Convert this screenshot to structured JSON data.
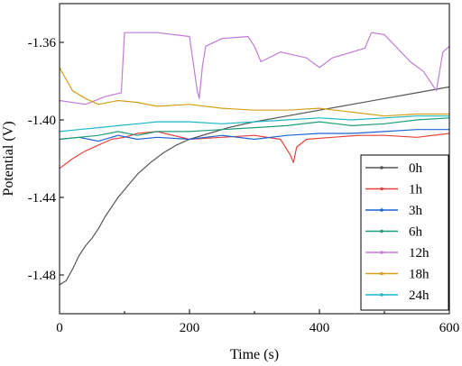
{
  "chart_data": {
    "type": "line",
    "xlabel": "Time (s)",
    "ylabel": "Potential (V)",
    "xlim": [
      0,
      600
    ],
    "ylim": [
      -1.5,
      -1.34
    ],
    "xticks": [
      0,
      200,
      400,
      600
    ],
    "xtick_labels": [
      "0",
      "200",
      "400",
      "600"
    ],
    "yticks": [
      -1.48,
      -1.44,
      -1.4,
      -1.36
    ],
    "ytick_labels": [
      "-1.48",
      "-1.44",
      "-1.40",
      "-1.36"
    ],
    "grid": false,
    "legend_position": "bottom-right",
    "series": [
      {
        "name": "0h",
        "color": "#555555",
        "x": [
          0,
          10,
          20,
          30,
          40,
          50,
          60,
          70,
          80,
          90,
          100,
          120,
          140,
          160,
          180,
          200,
          230,
          260,
          300,
          350,
          400,
          450,
          500,
          550,
          600
        ],
        "y": [
          -1.485,
          -1.483,
          -1.477,
          -1.47,
          -1.465,
          -1.461,
          -1.456,
          -1.45,
          -1.445,
          -1.44,
          -1.436,
          -1.428,
          -1.422,
          -1.417,
          -1.413,
          -1.41,
          -1.407,
          -1.404,
          -1.401,
          -1.398,
          -1.395,
          -1.392,
          -1.389,
          -1.386,
          -1.383
        ]
      },
      {
        "name": "1h",
        "color": "#e8413a",
        "x": [
          0,
          20,
          40,
          60,
          80,
          100,
          120,
          150,
          200,
          250,
          300,
          340,
          355,
          360,
          365,
          380,
          420,
          460,
          500,
          550,
          600
        ],
        "y": [
          -1.425,
          -1.42,
          -1.416,
          -1.413,
          -1.41,
          -1.409,
          -1.407,
          -1.406,
          -1.41,
          -1.409,
          -1.408,
          -1.41,
          -1.418,
          -1.422,
          -1.414,
          -1.41,
          -1.409,
          -1.408,
          -1.408,
          -1.409,
          -1.407
        ]
      },
      {
        "name": "3h",
        "color": "#1f64d6",
        "x": [
          0,
          30,
          60,
          90,
          120,
          150,
          200,
          250,
          300,
          350,
          400,
          450,
          500,
          550,
          600
        ],
        "y": [
          -1.41,
          -1.409,
          -1.411,
          -1.408,
          -1.41,
          -1.409,
          -1.41,
          -1.408,
          -1.41,
          -1.408,
          -1.407,
          -1.407,
          -1.406,
          -1.405,
          -1.405
        ]
      },
      {
        "name": "6h",
        "color": "#1c9e7a",
        "x": [
          0,
          30,
          60,
          90,
          120,
          150,
          200,
          250,
          300,
          350,
          400,
          450,
          500,
          550,
          600
        ],
        "y": [
          -1.41,
          -1.409,
          -1.408,
          -1.406,
          -1.408,
          -1.406,
          -1.406,
          -1.405,
          -1.404,
          -1.403,
          -1.401,
          -1.403,
          -1.402,
          -1.4,
          -1.399
        ]
      },
      {
        "name": "12h",
        "color": "#c27ad9",
        "x": [
          0,
          40,
          70,
          95,
          100,
          150,
          200,
          212,
          215,
          220,
          225,
          250,
          290,
          300,
          310,
          340,
          380,
          400,
          420,
          470,
          480,
          500,
          540,
          560,
          580,
          590,
          600
        ],
        "y": [
          -1.39,
          -1.392,
          -1.388,
          -1.386,
          -1.355,
          -1.355,
          -1.357,
          -1.385,
          -1.389,
          -1.372,
          -1.362,
          -1.358,
          -1.357,
          -1.362,
          -1.37,
          -1.365,
          -1.368,
          -1.373,
          -1.368,
          -1.363,
          -1.355,
          -1.356,
          -1.37,
          -1.375,
          -1.385,
          -1.365,
          -1.362
        ]
      },
      {
        "name": "18h",
        "color": "#d4a017",
        "x": [
          0,
          20,
          40,
          60,
          90,
          120,
          150,
          200,
          250,
          300,
          350,
          400,
          450,
          500,
          550,
          600
        ],
        "y": [
          -1.373,
          -1.385,
          -1.389,
          -1.392,
          -1.39,
          -1.391,
          -1.393,
          -1.392,
          -1.394,
          -1.395,
          -1.395,
          -1.394,
          -1.396,
          -1.398,
          -1.397,
          -1.397
        ]
      },
      {
        "name": "24h",
        "color": "#19b8c9",
        "x": [
          0,
          30,
          60,
          90,
          120,
          150,
          200,
          250,
          300,
          350,
          400,
          450,
          500,
          550,
          600
        ],
        "y": [
          -1.406,
          -1.405,
          -1.404,
          -1.403,
          -1.402,
          -1.401,
          -1.401,
          -1.402,
          -1.401,
          -1.4,
          -1.399,
          -1.4,
          -1.399,
          -1.398,
          -1.398
        ]
      }
    ]
  }
}
